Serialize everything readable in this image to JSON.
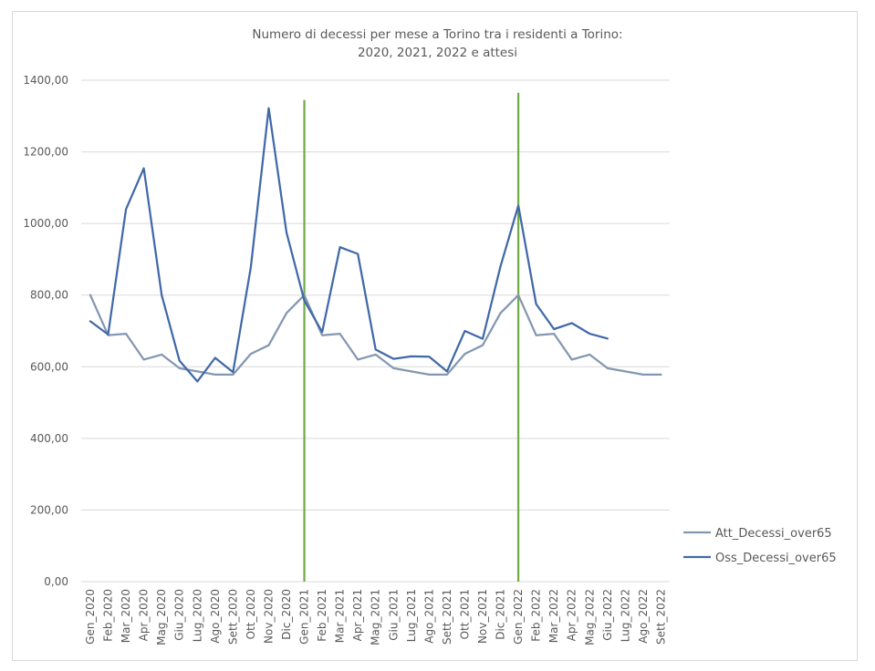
{
  "chart_data": {
    "type": "line",
    "title_lines": [
      "Numero di decessi per mese a Torino tra i residenti a Torino:",
      "2020, 2021, 2022 e attesi"
    ],
    "xlabel": "",
    "ylabel": "",
    "ylim": [
      0,
      1400
    ],
    "yticks": [
      0,
      200,
      400,
      600,
      800,
      1000,
      1200,
      1400
    ],
    "ytick_labels": [
      "0,00",
      "200,00",
      "400,00",
      "600,00",
      "800,00",
      "1000,00",
      "1200,00",
      "1400,00"
    ],
    "grid": true,
    "legend_position": "right",
    "categories": [
      "Gen_2020",
      "Feb_2020",
      "Mar_2020",
      "Apr_2020",
      "Mag_2020",
      "Giu_2020",
      "Lug_2020",
      "Ago_2020",
      "Sett_2020",
      "Ott_2020",
      "Nov_2020",
      "Dic_2020",
      "Gen_2021",
      "Feb_2021",
      "Mar_2021",
      "Apr_2021",
      "Mag_2021",
      "Giu_2021",
      "Lug_2021",
      "Ago_2021",
      "Sett_2021",
      "Ott_2021",
      "Nov_2021",
      "Dic_2021",
      "Gen_2022",
      "Feb_2022",
      "Mar_2022",
      "Apr_2022",
      "Mag_2022",
      "Giu_2022",
      "Lug_2022",
      "Ago_2022",
      "Sett_2022"
    ],
    "series": [
      {
        "name": "Att_Decessi_over65",
        "color": "#8497b0",
        "values": [
          800,
          688,
          692,
          620,
          634,
          596,
          587,
          578,
          578,
          636,
          660,
          750,
          800,
          688,
          692,
          620,
          634,
          596,
          587,
          578,
          578,
          636,
          660,
          750,
          800,
          688,
          692,
          620,
          634,
          596,
          587,
          578,
          578
        ]
      },
      {
        "name": "Oss_Decessi_over65",
        "color": "#4169a8",
        "values": [
          727,
          690,
          1040,
          1154,
          800,
          617,
          559,
          625,
          585,
          878,
          1322,
          975,
          785,
          697,
          934,
          915,
          648,
          622,
          629,
          628,
          587,
          700,
          678,
          880,
          1050,
          775,
          705,
          722,
          692,
          679,
          null,
          null,
          null
        ]
      }
    ],
    "reference_lines": [
      {
        "category": "Gen_2021",
        "value_top": 1345,
        "color": "#70ad47"
      },
      {
        "category": "Gen_2022",
        "value_top": 1365,
        "color": "#70ad47"
      }
    ]
  }
}
